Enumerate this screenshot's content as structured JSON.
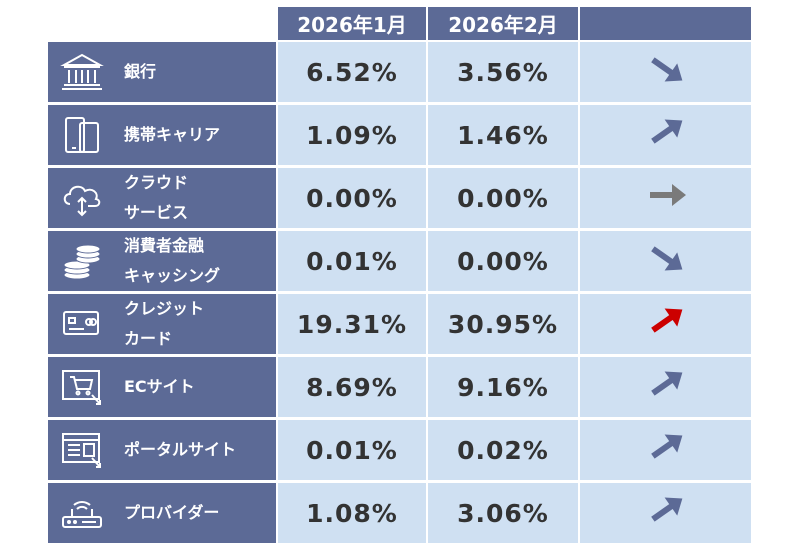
{
  "headers": [
    "2026年1月",
    "2026年2月",
    ""
  ],
  "rows": [
    {
      "icon": "bank-icon",
      "label": [
        "銀行"
      ],
      "jan": "6.52%",
      "feb": "3.56%",
      "trend": "down",
      "trend_color": "#5c6a96"
    },
    {
      "icon": "mobile-devices-icon",
      "label": [
        "携帯キャリア"
      ],
      "jan": "1.09%",
      "feb": "1.46%",
      "trend": "up",
      "trend_color": "#5c6a96"
    },
    {
      "icon": "cloud-icon",
      "label": [
        "クラウド",
        "サービス"
      ],
      "jan": "0.00%",
      "feb": "0.00%",
      "trend": "flat",
      "trend_color": "#7a7a7a"
    },
    {
      "icon": "coins-icon",
      "label": [
        "消費者金融",
        "キャッシング"
      ],
      "jan": "0.01%",
      "feb": "0.00%",
      "trend": "down",
      "trend_color": "#5c6a96"
    },
    {
      "icon": "credit-card-icon",
      "label": [
        "クレジット",
        "カード"
      ],
      "jan": "19.31%",
      "feb": "30.95%",
      "trend": "up",
      "trend_color": "#cc0000"
    },
    {
      "icon": "shopping-cart-icon",
      "label": [
        "ECサイト"
      ],
      "jan": "8.69%",
      "feb": "9.16%",
      "trend": "up",
      "trend_color": "#5c6a96"
    },
    {
      "icon": "portal-browser-icon",
      "label": [
        "ポータルサイト"
      ],
      "jan": "0.01%",
      "feb": "0.02%",
      "trend": "up",
      "trend_color": "#5c6a96"
    },
    {
      "icon": "router-icon",
      "label": [
        "プロバイダー"
      ],
      "jan": "1.08%",
      "feb": "3.06%",
      "trend": "up",
      "trend_color": "#5c6a96"
    }
  ]
}
